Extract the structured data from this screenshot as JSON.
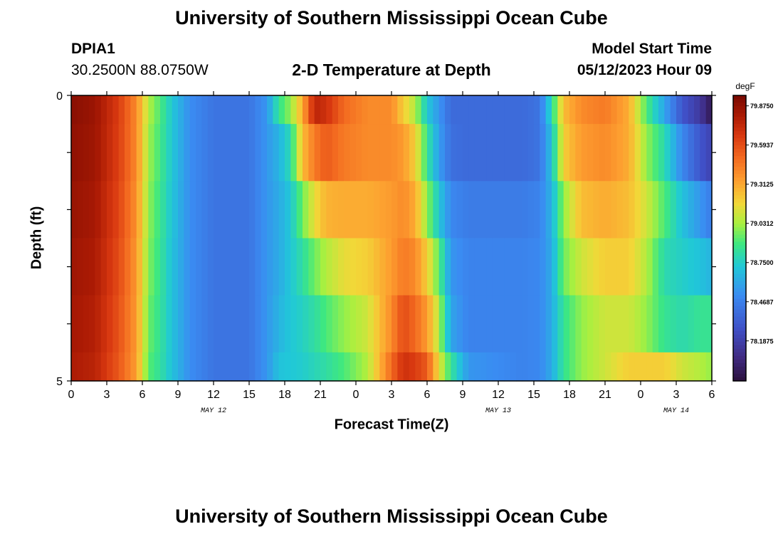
{
  "header": {
    "title": "University of Southern Mississippi Ocean Cube",
    "station_id": "DPIA1",
    "station_coords": "30.2500N  88.0750W",
    "chart_title": "2-D Temperature at Depth",
    "model_start_label": "Model Start Time",
    "model_start_value": "05/12/2023 Hour 09"
  },
  "footer": {
    "title": "University of Southern Mississippi Ocean Cube"
  },
  "chart_data": {
    "type": "heatmap",
    "xlabel": "Forecast Time(Z)",
    "ylabel": "Depth (ft)",
    "x_tick_labels": [
      "0",
      "3",
      "6",
      "9",
      "12",
      "15",
      "18",
      "21",
      "0",
      "3",
      "6",
      "9",
      "12",
      "15",
      "18",
      "21",
      "0",
      "3",
      "6"
    ],
    "date_labels": [
      {
        "label": "MAY 12",
        "hour": 12
      },
      {
        "label": "MAY 13",
        "hour": 36
      },
      {
        "label": "MAY 14",
        "hour": 51
      }
    ],
    "xlim": [
      0,
      54
    ],
    "ylim": [
      0,
      5
    ],
    "y_tick_labels": [
      "0",
      "5"
    ],
    "colorbar": {
      "unit": "degF",
      "range": [
        77.9,
        79.95
      ],
      "tick_values": [
        79.875,
        79.5937,
        79.3125,
        79.0312,
        78.75,
        78.4687,
        78.1875
      ],
      "tick_labels": [
        "79.8750",
        "79.5937",
        "79.3125",
        "79.0312",
        "78.7500",
        "78.4687",
        "78.1875"
      ]
    },
    "depth_rows": [
      "0-0.5 ft",
      "0.5-1.5 ft",
      "1.5-2.5 ft",
      "2.5-3.5 ft",
      "3.5-4.5 ft",
      "4.5-5 ft"
    ],
    "time_keyframes": [
      {
        "hour": 0,
        "values": [
          79.9,
          79.88,
          79.86,
          79.84,
          79.82,
          79.8
        ]
      },
      {
        "hour": 2,
        "values": [
          79.85,
          79.84,
          79.82,
          79.8,
          79.78,
          79.76
        ]
      },
      {
        "hour": 4,
        "values": [
          79.65,
          79.64,
          79.62,
          79.6,
          79.58,
          79.56
        ]
      },
      {
        "hour": 5.5,
        "values": [
          79.4,
          79.4,
          79.38,
          79.36,
          79.35,
          79.34
        ]
      },
      {
        "hour": 6.5,
        "values": [
          79.05,
          79.02,
          79.0,
          78.98,
          78.95,
          78.92
        ]
      },
      {
        "hour": 7.5,
        "values": [
          78.9,
          78.88,
          78.86,
          78.85,
          78.84,
          78.83
        ]
      },
      {
        "hour": 8.5,
        "values": [
          78.72,
          78.72,
          78.71,
          78.7,
          78.7,
          78.7
        ]
      },
      {
        "hour": 10,
        "values": [
          78.52,
          78.52,
          78.52,
          78.52,
          78.52,
          78.52
        ]
      },
      {
        "hour": 12,
        "values": [
          78.42,
          78.42,
          78.42,
          78.42,
          78.42,
          78.42
        ]
      },
      {
        "hour": 15,
        "values": [
          78.42,
          78.42,
          78.42,
          78.42,
          78.42,
          78.42
        ]
      },
      {
        "hour": 16.5,
        "values": [
          78.55,
          78.55,
          78.55,
          78.55,
          78.55,
          78.55
        ]
      },
      {
        "hour": 17.5,
        "values": [
          78.85,
          78.65,
          78.62,
          78.62,
          78.65,
          78.7
        ]
      },
      {
        "hour": 18.5,
        "values": [
          79.0,
          78.8,
          78.72,
          78.72,
          78.72,
          78.72
        ]
      },
      {
        "hour": 19.5,
        "values": [
          79.3,
          79.25,
          78.95,
          78.82,
          78.76,
          78.74
        ]
      },
      {
        "hour": 20.5,
        "values": [
          79.75,
          79.45,
          79.15,
          78.95,
          78.82,
          78.78
        ]
      },
      {
        "hour": 21.5,
        "values": [
          79.7,
          79.55,
          79.28,
          79.05,
          78.9,
          78.82
        ]
      },
      {
        "hour": 23,
        "values": [
          79.5,
          79.45,
          79.3,
          79.15,
          79.0,
          78.9
        ]
      },
      {
        "hour": 25,
        "values": [
          79.4,
          79.4,
          79.3,
          79.2,
          79.1,
          79.05
        ]
      },
      {
        "hour": 27,
        "values": [
          79.4,
          79.4,
          79.35,
          79.35,
          79.4,
          79.5
        ]
      },
      {
        "hour": 28,
        "values": [
          79.2,
          79.35,
          79.4,
          79.45,
          79.6,
          79.7
        ]
      },
      {
        "hour": 29,
        "values": [
          79.05,
          79.2,
          79.3,
          79.4,
          79.5,
          79.65
        ]
      },
      {
        "hour": 30,
        "values": [
          78.72,
          78.85,
          79.0,
          79.2,
          79.35,
          79.55
        ]
      },
      {
        "hour": 31,
        "values": [
          78.55,
          78.58,
          78.72,
          78.92,
          79.05,
          79.15
        ]
      },
      {
        "hour": 32,
        "values": [
          78.38,
          78.4,
          78.5,
          78.55,
          78.6,
          78.85
        ]
      },
      {
        "hour": 33.5,
        "values": [
          78.38,
          78.38,
          78.45,
          78.48,
          78.48,
          78.55
        ]
      },
      {
        "hour": 38,
        "values": [
          78.38,
          78.38,
          78.45,
          78.48,
          78.48,
          78.48
        ]
      },
      {
        "hour": 39.5,
        "values": [
          78.42,
          78.42,
          78.48,
          78.5,
          78.5,
          78.5
        ]
      },
      {
        "hour": 40.5,
        "values": [
          78.8,
          78.7,
          78.65,
          78.62,
          78.62,
          78.62
        ]
      },
      {
        "hour": 41.5,
        "values": [
          79.25,
          79.2,
          79.0,
          78.95,
          78.85,
          78.85
        ]
      },
      {
        "hour": 43,
        "values": [
          79.4,
          79.35,
          79.25,
          79.1,
          79.0,
          79.0
        ]
      },
      {
        "hour": 45,
        "values": [
          79.45,
          79.4,
          79.3,
          79.2,
          79.1,
          79.1
        ]
      },
      {
        "hour": 47,
        "values": [
          79.3,
          79.3,
          79.25,
          79.2,
          79.1,
          79.2
        ]
      },
      {
        "hour": 48.5,
        "values": [
          78.9,
          79.0,
          79.1,
          79.05,
          79.0,
          79.2
        ]
      },
      {
        "hour": 50,
        "values": [
          78.6,
          78.8,
          78.9,
          78.8,
          78.85,
          79.2
        ]
      },
      {
        "hour": 51.5,
        "values": [
          78.3,
          78.5,
          78.7,
          78.75,
          78.8,
          79.1
        ]
      },
      {
        "hour": 53,
        "values": [
          78.15,
          78.3,
          78.55,
          78.7,
          78.85,
          79.05
        ]
      },
      {
        "hour": 54,
        "values": [
          77.95,
          78.2,
          78.45,
          78.65,
          78.85,
          79.0
        ]
      }
    ]
  }
}
